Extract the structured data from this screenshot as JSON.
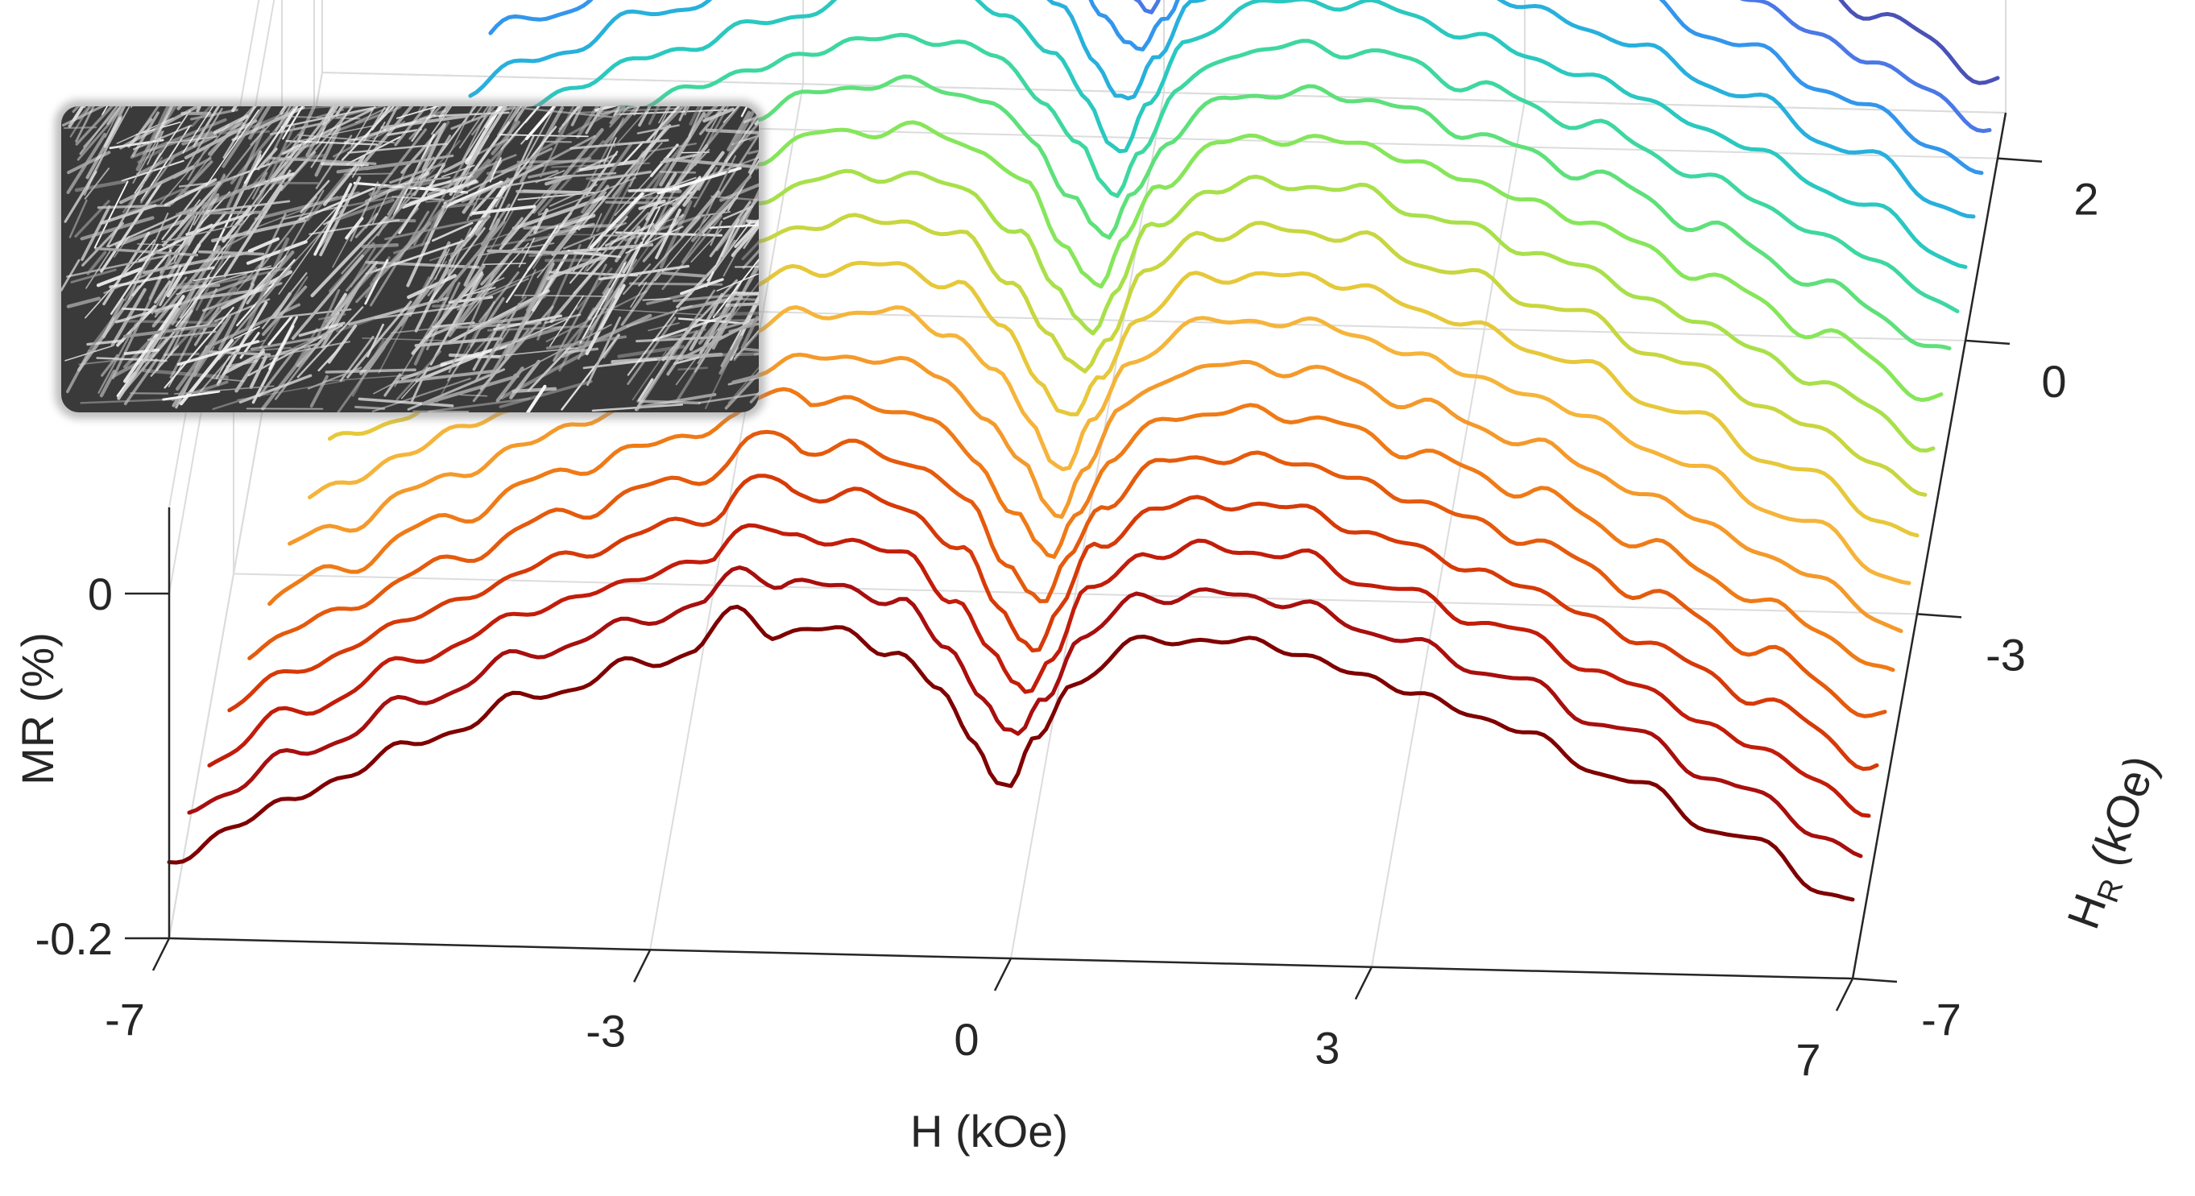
{
  "chart_data": {
    "type": "line",
    "projection": "3d-waterfall",
    "title": "",
    "xlabel": "H (kOe)",
    "ylabel_main": "H",
    "ylabel_sub": "R",
    "ylabel_unit": " (kOe)",
    "zlabel": "MR (%)",
    "xlim": [
      -7,
      7
    ],
    "ylim": [
      -7,
      2.5
    ],
    "zlim": [
      -0.2,
      0.05
    ],
    "x_ticks": [
      {
        "value": -7,
        "label": "-7"
      },
      {
        "value": -3,
        "label": "-3"
      },
      {
        "value": 0,
        "label": "0"
      },
      {
        "value": 3,
        "label": "3"
      },
      {
        "value": 7,
        "label": "7"
      }
    ],
    "y_ticks": [
      {
        "value": -7,
        "label": "-7"
      },
      {
        "value": -3,
        "label": "-3"
      },
      {
        "value": 0,
        "label": "0"
      },
      {
        "value": 2,
        "label": "2"
      }
    ],
    "z_ticks": [
      {
        "value": 0,
        "label": "0"
      },
      {
        "value": -0.2,
        "label": "-0.2"
      }
    ],
    "grid": true,
    "legend": "none",
    "colormap": "jet",
    "series_hr_values": [
      -7.0,
      -6.5,
      -6.0,
      -5.5,
      -5.0,
      -4.5,
      -4.0,
      -3.5,
      -3.0,
      -2.5,
      -2.0,
      -1.5,
      -1.0,
      -0.5,
      0.0,
      0.5,
      1.0,
      1.5,
      2.0
    ],
    "series_colors": [
      "#7f0000",
      "#a80f0f",
      "#c21d0a",
      "#d63a08",
      "#e55a0c",
      "#ef7a16",
      "#f4992a",
      "#f5b43a",
      "#e6c83a",
      "#c8d640",
      "#a8e04a",
      "#86e65a",
      "#5ee07a",
      "#3ed7a0",
      "#2ac8c0",
      "#28b0dc",
      "#3396ec",
      "#4a78e6",
      "#4a52b8"
    ],
    "mr_profile": {
      "h_kOe": [
        -7,
        -6,
        -5,
        -4,
        -3,
        -2.2,
        -1.5,
        -1,
        -0.6,
        -0.3,
        -0.1,
        0,
        0.2,
        0.5,
        1,
        1.5,
        2.2,
        3,
        4,
        5,
        6,
        7
      ],
      "mr_percent": [
        -0.155,
        -0.118,
        -0.085,
        -0.055,
        -0.033,
        -0.015,
        -0.012,
        -0.022,
        -0.045,
        -0.075,
        -0.095,
        -0.1,
        -0.075,
        -0.04,
        -0.016,
        -0.012,
        -0.015,
        -0.033,
        -0.055,
        -0.085,
        -0.118,
        -0.155
      ]
    },
    "sem_inset": "nanowire-array-micrograph"
  }
}
